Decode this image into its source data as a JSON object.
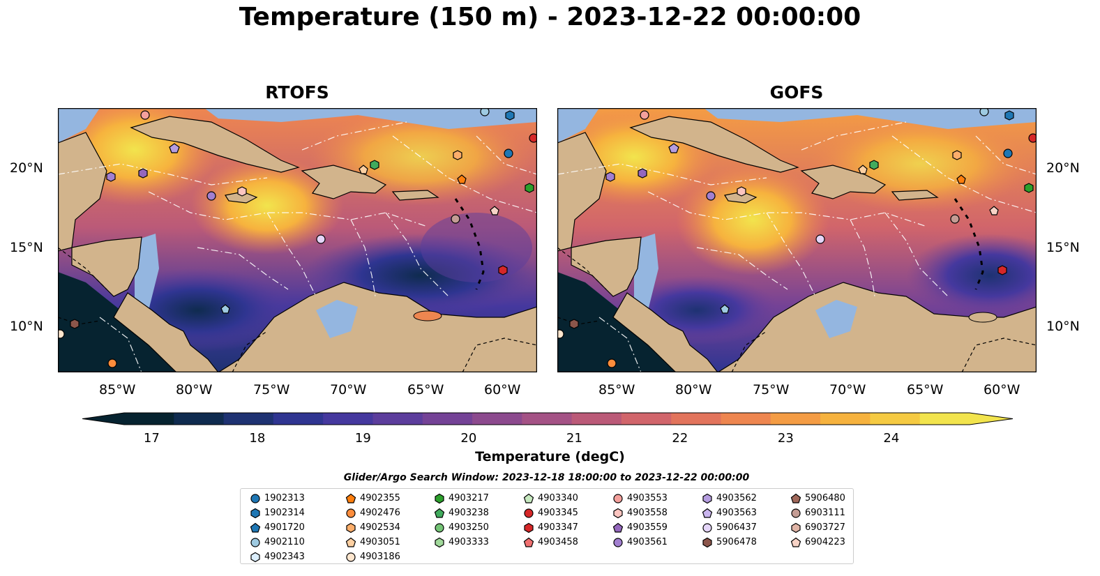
{
  "title": "Temperature (150 m) - 2023-12-22 00:00:00",
  "panels": [
    {
      "name": "RTOFS"
    },
    {
      "name": "GOFS"
    }
  ],
  "lat_labels": [
    "20°N",
    "15°N",
    "10°N"
  ],
  "lon_labels": [
    "85°W",
    "80°W",
    "75°W",
    "70°W",
    "65°W",
    "60°W"
  ],
  "colorbar": {
    "label": "Temperature (degC)",
    "ticks": [
      "17",
      "18",
      "19",
      "20",
      "21",
      "22",
      "23",
      "24"
    ],
    "range": [
      16.75,
      24.75
    ],
    "colors": [
      "#062330",
      "#0f2b4f",
      "#1e3272",
      "#2f3591",
      "#45389e",
      "#5c3d9c",
      "#744296",
      "#8c4a8e",
      "#a45285",
      "#bb5a78",
      "#d1656b",
      "#e2745c",
      "#ee8650",
      "#f49c44",
      "#f6b23e",
      "#f5ca42",
      "#f2e44d"
    ]
  },
  "search_window": "Glider/Argo Search Window: 2023-12-18 18:00:00 to 2023-12-22 00:00:00",
  "legend": [
    [
      {
        "id": "1902313",
        "color": "#1f77b4",
        "marker": "circle"
      },
      {
        "id": "1902314",
        "color": "#1f77b4",
        "marker": "hexagon"
      },
      {
        "id": "4901720",
        "color": "#1f77b4",
        "marker": "pentagon"
      },
      {
        "id": "4902110",
        "color": "#9ecae1",
        "marker": "circle"
      },
      {
        "id": "4902343",
        "color": "#dbeefd",
        "marker": "hexagon"
      }
    ],
    [
      {
        "id": "4902355",
        "color": "#ff7f0e",
        "marker": "pentagon"
      },
      {
        "id": "4902476",
        "color": "#fd8d3c",
        "marker": "circle"
      },
      {
        "id": "4902534",
        "color": "#fdae6b",
        "marker": "hexagon"
      },
      {
        "id": "4903051",
        "color": "#fdd0a2",
        "marker": "pentagon"
      },
      {
        "id": "4903186",
        "color": "#fee6ce",
        "marker": "circle"
      }
    ],
    [
      {
        "id": "4903217",
        "color": "#2ca02c",
        "marker": "hexagon"
      },
      {
        "id": "4903238",
        "color": "#41ab5d",
        "marker": "pentagon"
      },
      {
        "id": "4903250",
        "color": "#74c476",
        "marker": "circle"
      },
      {
        "id": "4903333",
        "color": "#a1d99b",
        "marker": "hexagon"
      }
    ],
    [
      {
        "id": "4903340",
        "color": "#c7e9c0",
        "marker": "pentagon"
      },
      {
        "id": "4903345",
        "color": "#d62728",
        "marker": "circle"
      },
      {
        "id": "4903347",
        "color": "#d62728",
        "marker": "hexagon"
      },
      {
        "id": "4903458",
        "color": "#f07070",
        "marker": "pentagon"
      }
    ],
    [
      {
        "id": "4903553",
        "color": "#f4a09c",
        "marker": "circle"
      },
      {
        "id": "4903558",
        "color": "#fcc5c0",
        "marker": "hexagon"
      },
      {
        "id": "4903559",
        "color": "#9467bd",
        "marker": "pentagon"
      },
      {
        "id": "4903561",
        "color": "#a27fd0",
        "marker": "circle"
      }
    ],
    [
      {
        "id": "4903562",
        "color": "#b59de0",
        "marker": "hexagon"
      },
      {
        "id": "4903563",
        "color": "#c9b5ee",
        "marker": "pentagon"
      },
      {
        "id": "5906437",
        "color": "#e4d5f8",
        "marker": "circle"
      },
      {
        "id": "5906478",
        "color": "#8c564b",
        "marker": "hexagon"
      }
    ],
    [
      {
        "id": "5906480",
        "color": "#a0685a",
        "marker": "pentagon"
      },
      {
        "id": "6903111",
        "color": "#c49c94",
        "marker": "circle"
      },
      {
        "id": "6903727",
        "color": "#e0b4a6",
        "marker": "hexagon"
      },
      {
        "id": "6904223",
        "color": "#f7d3c6",
        "marker": "pentagon"
      }
    ]
  ]
}
